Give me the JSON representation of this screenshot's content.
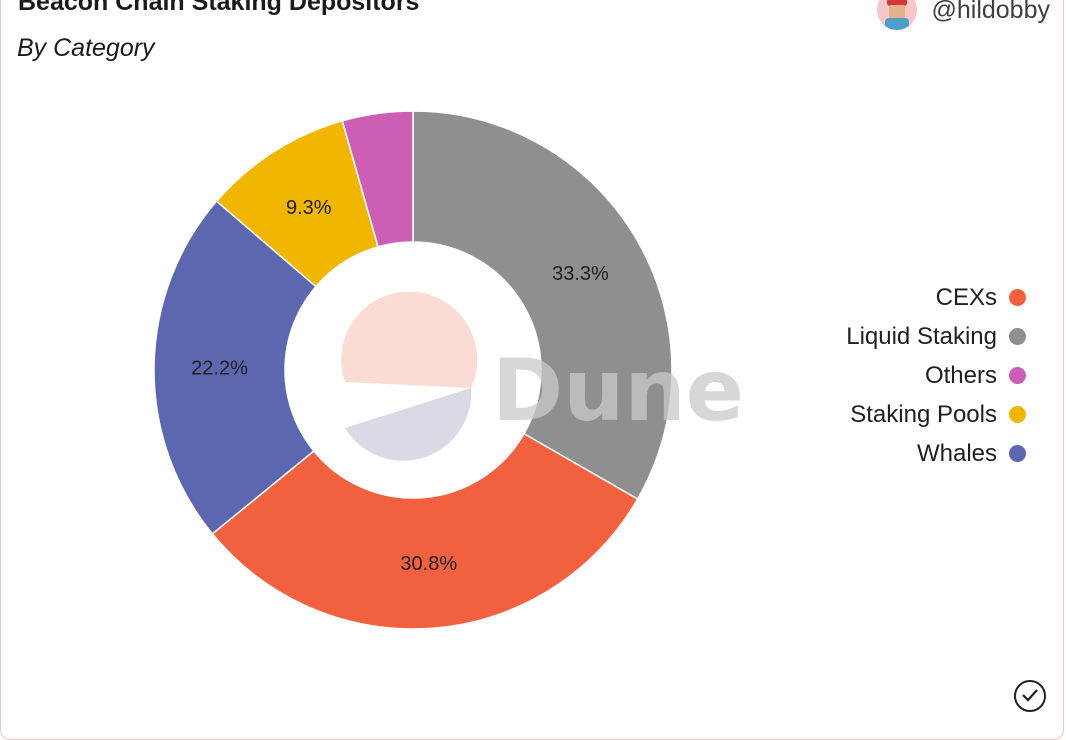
{
  "header": {
    "title": "Beacon Chain Staking Depositors",
    "subtitle": "By Category",
    "author": "@hildobby"
  },
  "watermark": "Dune",
  "colors": {
    "CEXs": "#f2613f",
    "Liquid Staking": "#8f8f8f",
    "Others": "#cc5fb5",
    "Staking Pools": "#f0b600",
    "Whales": "#5c67b0",
    "watermark": "#c9c9c9"
  },
  "chart_data": {
    "type": "pie",
    "variant": "donut",
    "title": "Beacon Chain Staking Depositors",
    "subtitle": "By Category",
    "slices": [
      {
        "label": "Liquid Staking",
        "value": 33.3,
        "data_label": "33.3%"
      },
      {
        "label": "CEXs",
        "value": 30.8,
        "data_label": "30.8%"
      },
      {
        "label": "Whales",
        "value": 22.2,
        "data_label": "22.2%"
      },
      {
        "label": "Staking Pools",
        "value": 9.3,
        "data_label": "9.3%"
      },
      {
        "label": "Others",
        "value": 4.4,
        "data_label": ""
      }
    ],
    "legend": {
      "position": "right",
      "entries": [
        "CEXs",
        "Liquid Staking",
        "Others",
        "Staking Pools",
        "Whales"
      ]
    }
  },
  "icons": {
    "avatar": "author-avatar",
    "status": "check-circle-icon"
  }
}
